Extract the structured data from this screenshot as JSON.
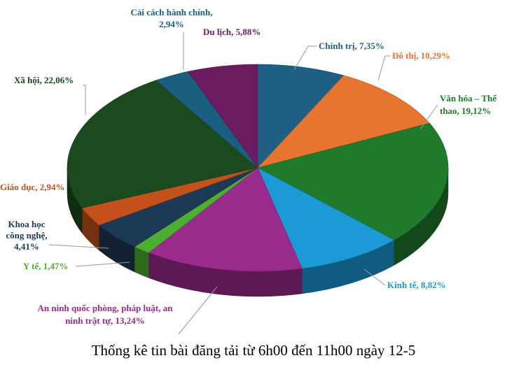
{
  "chart_data": {
    "type": "pie3d",
    "title": "Thống kê tin bài đăng tải từ 6h00 đến 11h00 ngày 12-5",
    "values": [
      7.35,
      10.29,
      19.12,
      8.82,
      13.24,
      1.47,
      4.41,
      2.94,
      22.06,
      2.94,
      5.88
    ],
    "value_labels": [
      "Chính trị, 7,35%",
      "Đô thị, 10,29%",
      "Văn hóa – Thể\nthao, 19,12%",
      "Kinh tế, 8,82%",
      "An ninh quốc phòng, pháp luật, an\nninh trật tự, 13,24%",
      "Y tế, 1,47%",
      "Khoa học\ncông nghệ,\n4,41%",
      "Giáo dục, 2,94%",
      "Xã hội, 22,06%",
      "Cải cách hành chính,\n2,94%",
      "Du lịch, 5,88%"
    ],
    "colors": [
      "#1f5f86",
      "#e8752f",
      "#1f7a2c",
      "#1b9ad6",
      "#9a2a8c",
      "#4caf2f",
      "#1c3a55",
      "#c4511b",
      "#1a4a1d",
      "#1a5e80",
      "#6b1b60"
    ]
  }
}
